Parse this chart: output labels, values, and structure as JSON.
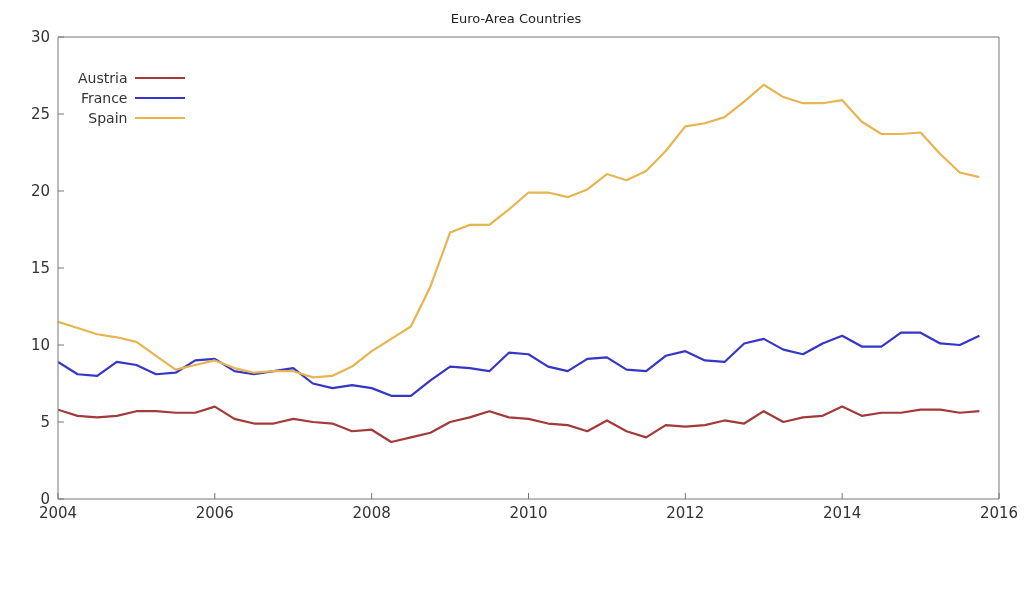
{
  "chart_data": {
    "type": "line",
    "title": "Euro-Area Countries",
    "x": [
      2004,
      2004.25,
      2004.5,
      2004.75,
      2005,
      2005.25,
      2005.5,
      2005.75,
      2006,
      2006.25,
      2006.5,
      2006.75,
      2007,
      2007.25,
      2007.5,
      2007.75,
      2008,
      2008.25,
      2008.5,
      2008.75,
      2009,
      2009.25,
      2009.5,
      2009.75,
      2010,
      2010.25,
      2010.5,
      2010.75,
      2011,
      2011.25,
      2011.5,
      2011.75,
      2012,
      2012.25,
      2012.5,
      2012.75,
      2013,
      2013.25,
      2013.5,
      2013.75,
      2014,
      2014.25,
      2014.5,
      2014.75,
      2015,
      2015.25,
      2015.5,
      2015.75
    ],
    "series": [
      {
        "name": "Austria",
        "color": "#a33a3a",
        "values": [
          5.8,
          5.4,
          5.3,
          5.4,
          5.7,
          5.7,
          5.6,
          5.6,
          6.0,
          5.2,
          4.9,
          4.9,
          5.2,
          5.0,
          4.9,
          4.4,
          4.5,
          3.7,
          4.0,
          4.3,
          5.0,
          5.3,
          5.7,
          5.3,
          5.2,
          4.9,
          4.8,
          4.4,
          5.1,
          4.4,
          4.0,
          4.8,
          4.7,
          4.8,
          5.1,
          4.9,
          5.7,
          5.0,
          5.3,
          5.4,
          6.0,
          5.4,
          5.6,
          5.6,
          5.8,
          5.8,
          5.6,
          5.7
        ]
      },
      {
        "name": "France",
        "color": "#3535c8",
        "values": [
          8.9,
          8.1,
          8.0,
          8.9,
          8.7,
          8.1,
          8.2,
          9.0,
          9.1,
          8.3,
          8.1,
          8.3,
          8.5,
          7.5,
          7.2,
          7.4,
          7.2,
          6.7,
          6.7,
          7.7,
          8.6,
          8.5,
          8.3,
          9.5,
          9.4,
          8.6,
          8.3,
          9.1,
          9.2,
          8.4,
          8.3,
          9.3,
          9.6,
          9.0,
          8.9,
          10.1,
          10.4,
          9.7,
          9.4,
          10.1,
          10.6,
          9.9,
          9.9,
          10.8,
          10.8,
          10.1,
          10.0,
          10.6
        ]
      },
      {
        "name": "Spain",
        "color": "#e6b550",
        "values": [
          11.5,
          11.1,
          10.7,
          10.5,
          10.2,
          9.3,
          8.4,
          8.7,
          9.0,
          8.5,
          8.2,
          8.3,
          8.3,
          7.9,
          8.0,
          8.6,
          9.6,
          10.4,
          11.2,
          13.8,
          17.3,
          17.8,
          17.8,
          18.8,
          19.9,
          19.9,
          19.6,
          20.1,
          21.1,
          20.7,
          21.3,
          22.6,
          24.2,
          24.4,
          24.8,
          25.8,
          26.9,
          26.1,
          25.7,
          25.7,
          25.9,
          24.5,
          23.7,
          23.7,
          23.8,
          22.4,
          21.2,
          20.9
        ]
      }
    ],
    "xlim": [
      2004,
      2016
    ],
    "xticks": [
      2004,
      2006,
      2008,
      2010,
      2012,
      2014,
      2016
    ],
    "ylim": [
      0,
      30
    ],
    "yticks": [
      0,
      5,
      10,
      15,
      20,
      25,
      30
    ],
    "legend": "top left"
  }
}
